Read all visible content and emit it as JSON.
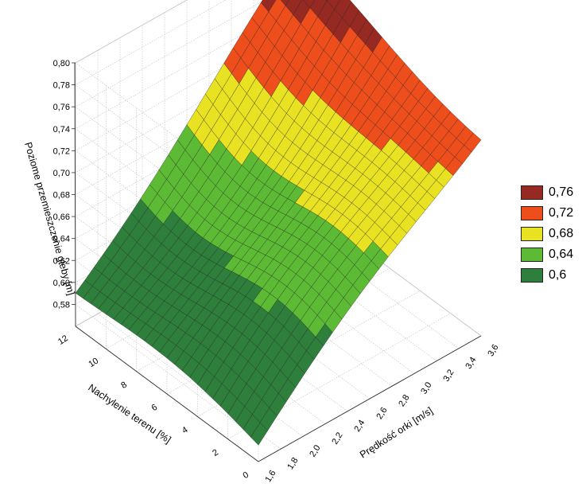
{
  "chart_data": {
    "type": "surface3d",
    "title": "",
    "z_label": "Poziome przemieszczenie gleby [m]",
    "y_label": "Nachylenie terenu [%]",
    "x_label": "Prędkość orki [m/s]",
    "x_ticks": [
      "1,6",
      "1,8",
      "2,0",
      "2,2",
      "2,4",
      "2,6",
      "2,8",
      "3,0",
      "3,2",
      "3,4",
      "3,6"
    ],
    "y_ticks": [
      "0",
      "2",
      "4",
      "6",
      "8",
      "10",
      "12"
    ],
    "z_ticks": [
      "0,58",
      "0,60",
      "0,62",
      "0,64",
      "0,66",
      "0,68",
      "0,70",
      "0,72",
      "0,74",
      "0,76",
      "0,78",
      "0,80"
    ],
    "x_range": [
      1.6,
      3.6
    ],
    "y_range": [
      0,
      12
    ],
    "z_range": [
      0.56,
      0.8
    ],
    "corner_values": [
      {
        "speed": 1.6,
        "slope": 0,
        "displacement": 0.575
      },
      {
        "speed": 3.6,
        "slope": 0,
        "displacement": 0.745
      },
      {
        "speed": 1.6,
        "slope": 12,
        "displacement": 0.595
      },
      {
        "speed": 3.6,
        "slope": 12,
        "displacement": 0.785
      }
    ],
    "legend": {
      "placement": "right",
      "items": [
        {
          "label": "0,76",
          "color": "#962a22"
        },
        {
          "label": "0,72",
          "color": "#ee4e1c"
        },
        {
          "label": "0,68",
          "color": "#e8e222"
        },
        {
          "label": "0,64",
          "color": "#5cba34"
        },
        {
          "label": "0,6",
          "color": "#2f7f3c"
        }
      ]
    },
    "grid": true
  }
}
